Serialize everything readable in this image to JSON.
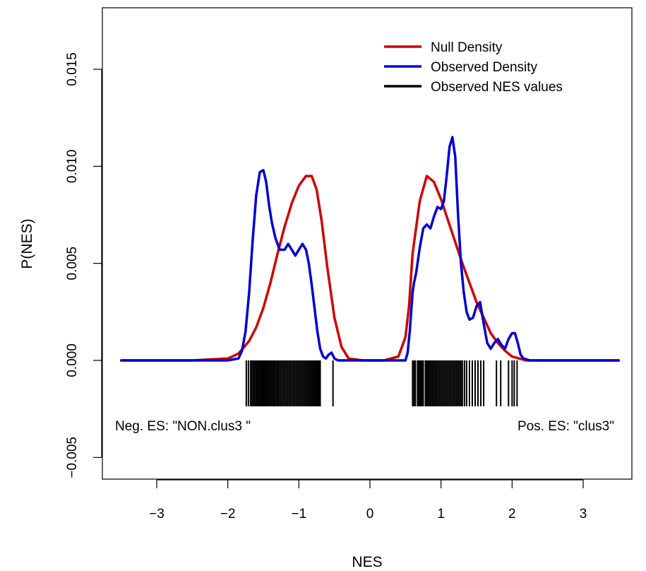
{
  "chart_data": {
    "type": "line",
    "xlabel": "NES",
    "ylabel": "P(NES)",
    "xlim": [
      -3.5,
      3.5
    ],
    "ylim": [
      -0.005,
      0.017
    ],
    "x_ticks": [
      -3,
      -2,
      -1,
      0,
      1,
      2,
      3
    ],
    "x_tick_labels": [
      "−3",
      "−2",
      "−1",
      "0",
      "1",
      "2",
      "3"
    ],
    "y_ticks": [
      -0.005,
      0.0,
      0.005,
      0.01,
      0.015
    ],
    "y_tick_labels": [
      "−0.005",
      "0.000",
      "0.005",
      "0.010",
      "0.015"
    ],
    "legend_position": "top-right",
    "legend": [
      {
        "label": "Null Density",
        "color": "#cc0000"
      },
      {
        "label": "Observed Density",
        "color": "#0000cc"
      },
      {
        "label": "Observed NES values",
        "color": "#000000"
      }
    ],
    "annotations": {
      "neg": "Neg. ES: \"NON.clus3 \"",
      "pos": "Pos. ES: \"clus3\""
    },
    "series": [
      {
        "name": "Null Density",
        "color": "#cc0000",
        "x": [
          -3.5,
          -2.5,
          -2.0,
          -1.85,
          -1.7,
          -1.6,
          -1.5,
          -1.4,
          -1.3,
          -1.2,
          -1.1,
          -1.0,
          -0.9,
          -0.82,
          -0.75,
          -0.68,
          -0.6,
          -0.5,
          -0.4,
          -0.3,
          -0.1,
          0.2,
          0.4,
          0.5,
          0.55,
          0.6,
          0.7,
          0.8,
          0.9,
          1.0,
          1.1,
          1.2,
          1.3,
          1.4,
          1.5,
          1.6,
          1.7,
          1.8,
          1.9,
          2.0,
          2.1,
          2.2,
          2.5,
          3.5
        ],
        "y": [
          0.0,
          0.0,
          0.0001,
          0.00035,
          0.001,
          0.0017,
          0.0027,
          0.004,
          0.0055,
          0.0069,
          0.0081,
          0.009,
          0.0095,
          0.0095,
          0.0088,
          0.0072,
          0.0048,
          0.0022,
          0.0007,
          0.0001,
          0.0,
          0.0,
          0.0002,
          0.0012,
          0.0028,
          0.0055,
          0.0082,
          0.0095,
          0.0092,
          0.0083,
          0.0072,
          0.0061,
          0.005,
          0.004,
          0.003,
          0.0022,
          0.0014,
          0.0009,
          0.0005,
          0.0002,
          0.0001,
          0.0,
          0.0,
          0.0
        ]
      },
      {
        "name": "Observed Density",
        "color": "#0000cc",
        "x": [
          -3.5,
          -2.0,
          -1.85,
          -1.8,
          -1.75,
          -1.7,
          -1.65,
          -1.6,
          -1.55,
          -1.5,
          -1.46,
          -1.42,
          -1.38,
          -1.33,
          -1.27,
          -1.2,
          -1.15,
          -1.1,
          -1.05,
          -1.0,
          -0.95,
          -0.9,
          -0.86,
          -0.82,
          -0.78,
          -0.74,
          -0.7,
          -0.66,
          -0.62,
          -0.58,
          -0.54,
          -0.5,
          -0.45,
          -0.4,
          -0.3,
          0.5,
          0.53,
          0.56,
          0.6,
          0.62,
          0.65,
          0.7,
          0.75,
          0.8,
          0.85,
          0.9,
          0.95,
          1.0,
          1.04,
          1.08,
          1.12,
          1.16,
          1.2,
          1.24,
          1.28,
          1.32,
          1.36,
          1.4,
          1.45,
          1.5,
          1.55,
          1.6,
          1.65,
          1.7,
          1.75,
          1.8,
          1.85,
          1.9,
          1.95,
          2.0,
          2.04,
          2.08,
          2.12,
          2.16,
          2.25,
          3.5
        ],
        "y": [
          0.0,
          0.0,
          0.0001,
          0.0005,
          0.0015,
          0.0035,
          0.0062,
          0.0085,
          0.0097,
          0.0098,
          0.0092,
          0.008,
          0.0071,
          0.0063,
          0.0057,
          0.0057,
          0.006,
          0.0057,
          0.0054,
          0.0057,
          0.006,
          0.0057,
          0.005,
          0.0039,
          0.0027,
          0.0015,
          0.0006,
          0.0002,
          0.0001,
          0.0003,
          0.0004,
          0.0001,
          0.0,
          0.0,
          0.0,
          0.0,
          0.0004,
          0.0015,
          0.0035,
          0.004,
          0.0045,
          0.0058,
          0.0068,
          0.007,
          0.0068,
          0.0074,
          0.0079,
          0.0078,
          0.0082,
          0.0095,
          0.011,
          0.0115,
          0.0105,
          0.0075,
          0.005,
          0.0035,
          0.0025,
          0.0021,
          0.0022,
          0.0028,
          0.003,
          0.0019,
          0.0009,
          0.0006,
          0.0009,
          0.0011,
          0.0008,
          0.0006,
          0.0011,
          0.0014,
          0.0014,
          0.0009,
          0.0003,
          0.0001,
          0.0,
          0.0
        ]
      }
    ],
    "rug": {
      "name": "Observed NES values",
      "color": "#000000",
      "values": [
        -1.74,
        -1.71,
        -1.68,
        -1.66,
        -1.64,
        -1.62,
        -1.6,
        -1.59,
        -1.57,
        -1.55,
        -1.53,
        -1.51,
        -1.5,
        -1.48,
        -1.46,
        -1.45,
        -1.43,
        -1.41,
        -1.4,
        -1.38,
        -1.36,
        -1.35,
        -1.33,
        -1.31,
        -1.3,
        -1.28,
        -1.26,
        -1.24,
        -1.22,
        -1.2,
        -1.18,
        -1.16,
        -1.14,
        -1.12,
        -1.1,
        -1.08,
        -1.06,
        -1.04,
        -1.02,
        -1.0,
        -0.98,
        -0.96,
        -0.94,
        -0.92,
        -0.9,
        -0.88,
        -0.86,
        -0.84,
        -0.82,
        -0.8,
        -0.78,
        -0.76,
        -0.74,
        -0.72,
        -0.7,
        -0.52,
        0.6,
        0.62,
        0.64,
        0.67,
        0.69,
        0.71,
        0.73,
        0.75,
        0.78,
        0.8,
        0.82,
        0.84,
        0.86,
        0.88,
        0.9,
        0.92,
        0.94,
        0.96,
        0.98,
        1.0,
        1.02,
        1.04,
        1.06,
        1.08,
        1.1,
        1.12,
        1.14,
        1.16,
        1.18,
        1.2,
        1.22,
        1.24,
        1.26,
        1.28,
        1.3,
        1.33,
        1.36,
        1.4,
        1.44,
        1.48,
        1.52,
        1.56,
        1.6,
        1.78,
        1.84,
        1.95,
        2.0,
        2.03,
        2.07
      ]
    }
  }
}
